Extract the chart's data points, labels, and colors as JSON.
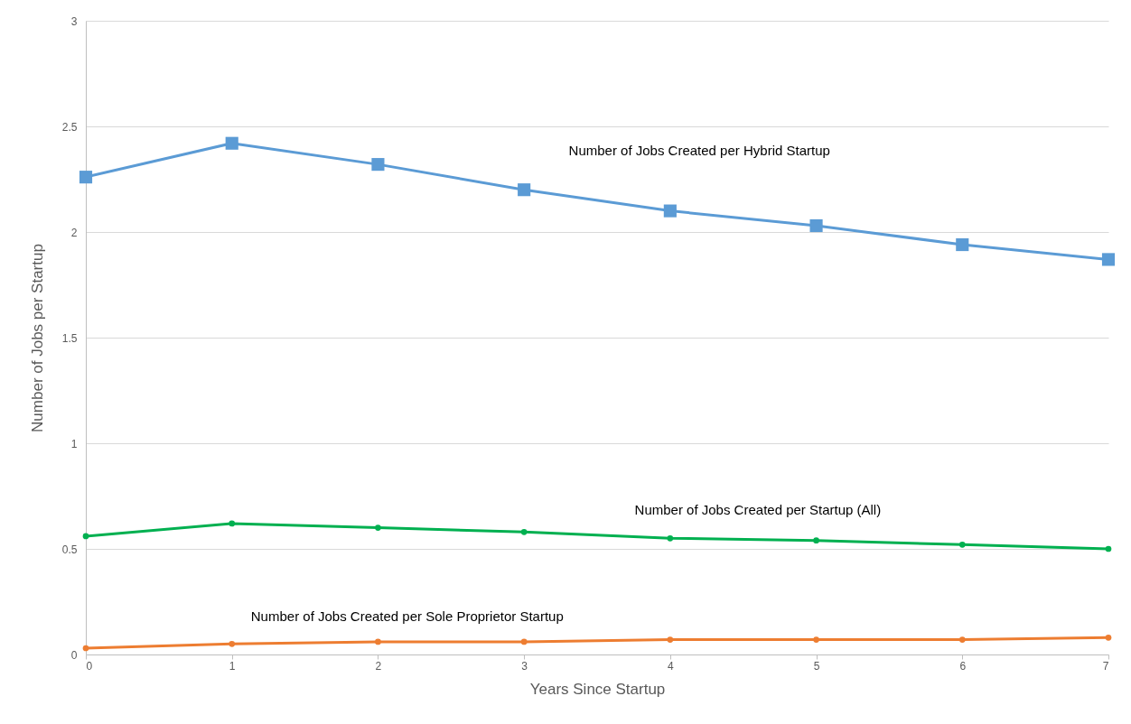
{
  "chart_data": {
    "type": "line",
    "xlabel": "Years Since Startup",
    "ylabel": "Number of Jobs per Startup",
    "x": [
      0,
      1,
      2,
      3,
      4,
      5,
      6,
      7
    ],
    "xlim": [
      0,
      7
    ],
    "xticks": [
      0,
      1,
      2,
      3,
      4,
      5,
      6,
      7
    ],
    "ylim": [
      0,
      3
    ],
    "yticks": [
      0,
      0.5,
      1,
      1.5,
      2,
      2.5,
      3
    ],
    "grid": "y",
    "series": [
      {
        "name": "Number of Jobs Created per Hybrid Startup",
        "color": "#5b9bd5",
        "marker": "square",
        "values": [
          2.26,
          2.42,
          2.32,
          2.2,
          2.1,
          2.03,
          1.94,
          1.87
        ]
      },
      {
        "name": "Number of Jobs Created per Startup (All)",
        "color": "#00b050",
        "marker": "circle",
        "values": [
          0.56,
          0.62,
          0.6,
          0.58,
          0.55,
          0.54,
          0.52,
          0.5
        ]
      },
      {
        "name": "Number of Jobs Created per Sole Proprietor Startup",
        "color": "#ed7d31",
        "marker": "circle",
        "values": [
          0.03,
          0.05,
          0.06,
          0.06,
          0.07,
          0.07,
          0.07,
          0.08
        ]
      }
    ]
  }
}
